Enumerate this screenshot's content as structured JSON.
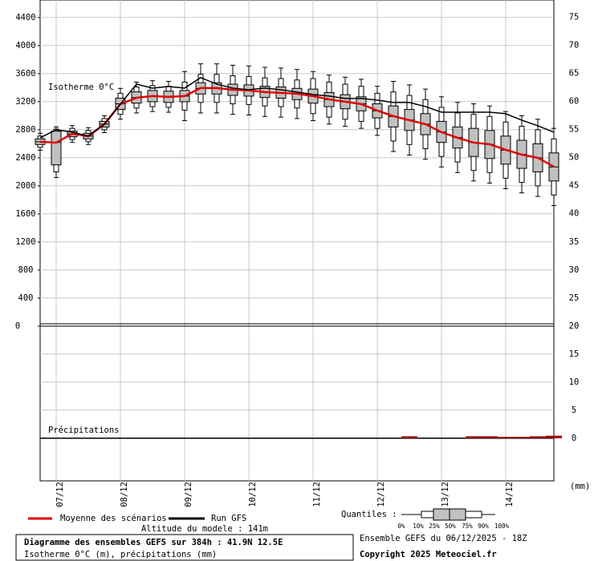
{
  "chart_data": {
    "type": "boxplot",
    "title": "Diagramme des ensembles GEFS sur 384h : 41.9N 12.5E",
    "subtitle": "Isotherme 0°C (m), précipitations (mm)",
    "annotations": [
      "Isotherme 0°C",
      "Précipitations"
    ],
    "y2_unit": "(mm)",
    "altitude": "Altitude du modele : 141m",
    "run": "Ensemble GEFS du 06/12/2025 - 18Z",
    "copyright": "Copyright 2025 Meteociel.fr",
    "quantiles_title": "Quantiles :",
    "quantile_labels": [
      "0%",
      "10%",
      "25%",
      "50%",
      "75%",
      "90%",
      "100%"
    ],
    "xlim": [
      0,
      192
    ],
    "xticks": [
      {
        "value": 6,
        "label": "07/12"
      },
      {
        "value": 30,
        "label": "08/12"
      },
      {
        "value": 54,
        "label": "09/12"
      },
      {
        "value": 78,
        "label": "10/12"
      },
      {
        "value": 102,
        "label": "11/12"
      },
      {
        "value": 126,
        "label": "12/12"
      },
      {
        "value": 150,
        "label": "13/12"
      },
      {
        "value": 174,
        "label": "14/12"
      }
    ],
    "ylim": [
      0,
      4650
    ],
    "yticks": [
      0,
      400,
      800,
      1200,
      1600,
      2000,
      2400,
      2800,
      3200,
      3600,
      4000,
      4400
    ],
    "y2lim": [
      -7.6,
      78.1
    ],
    "y2ticks": [
      0,
      5,
      10,
      15,
      20,
      25,
      30,
      35,
      40,
      45,
      50,
      55,
      60,
      65,
      70,
      75
    ],
    "grid": true,
    "x": [
      0,
      6,
      12,
      18,
      24,
      30,
      36,
      42,
      48,
      54,
      60,
      66,
      72,
      78,
      84,
      90,
      96,
      102,
      108,
      114,
      120,
      126,
      132,
      138,
      144,
      150,
      156,
      162,
      168,
      174,
      180,
      186,
      192
    ],
    "boxes": {
      "color": "#c0c0c0",
      "min": [
        2510,
        2120,
        2620,
        2590,
        2760,
        2950,
        3040,
        3060,
        3050,
        2930,
        3040,
        3040,
        3020,
        3010,
        2990,
        2980,
        2960,
        2930,
        2880,
        2850,
        2820,
        2720,
        2490,
        2440,
        2380,
        2270,
        2190,
        2070,
        2040,
        1960,
        1900,
        1850,
        1720
      ],
      "q10": [
        2550,
        2200,
        2660,
        2630,
        2800,
        3020,
        3110,
        3130,
        3120,
        3080,
        3190,
        3190,
        3170,
        3160,
        3140,
        3130,
        3110,
        3030,
        2980,
        2950,
        2920,
        2820,
        2640,
        2590,
        2530,
        2420,
        2340,
        2220,
        2190,
        2110,
        2050,
        2000,
        1870
      ],
      "q25": [
        2590,
        2300,
        2700,
        2670,
        2840,
        3090,
        3180,
        3200,
        3190,
        3200,
        3310,
        3310,
        3290,
        3280,
        3260,
        3250,
        3230,
        3180,
        3130,
        3100,
        3070,
        2970,
        2840,
        2790,
        2730,
        2620,
        2540,
        2420,
        2390,
        2310,
        2250,
        2200,
        2070
      ],
      "q50": [
        2630,
        2620,
        2740,
        2710,
        2880,
        3170,
        3260,
        3280,
        3270,
        3280,
        3390,
        3390,
        3370,
        3360,
        3340,
        3330,
        3310,
        3280,
        3230,
        3200,
        3170,
        3070,
        2990,
        2940,
        2880,
        2770,
        2690,
        2620,
        2590,
        2510,
        2450,
        2400,
        2270
      ],
      "q75": [
        2670,
        2780,
        2780,
        2750,
        2920,
        3250,
        3340,
        3360,
        3350,
        3360,
        3470,
        3470,
        3450,
        3440,
        3420,
        3410,
        3390,
        3380,
        3330,
        3300,
        3270,
        3170,
        3140,
        3090,
        3030,
        2920,
        2840,
        2820,
        2790,
        2710,
        2650,
        2600,
        2470
      ],
      "q90": [
        2710,
        2810,
        2820,
        2790,
        2960,
        3320,
        3410,
        3430,
        3420,
        3480,
        3590,
        3590,
        3570,
        3560,
        3540,
        3530,
        3510,
        3530,
        3480,
        3450,
        3420,
        3320,
        3340,
        3290,
        3230,
        3120,
        3040,
        3020,
        2990,
        2910,
        2850,
        2800,
        2670
      ],
      "max": [
        2750,
        2840,
        2860,
        2830,
        3000,
        3390,
        3480,
        3500,
        3490,
        3630,
        3740,
        3740,
        3720,
        3710,
        3690,
        3680,
        3660,
        3630,
        3580,
        3550,
        3520,
        3420,
        3490,
        3440,
        3380,
        3270,
        3190,
        3170,
        3140,
        3060,
        3000,
        2950,
        2820
      ]
    },
    "series": [
      {
        "name": "Moyenne des scénarios",
        "color": "#e00000",
        "values": [
          2629,
          2617,
          2743,
          2709,
          2880,
          3166,
          3257,
          3280,
          3269,
          3280,
          3394,
          3394,
          3371,
          3360,
          3337,
          3326,
          3314,
          3280,
          3234,
          3200,
          3166,
          3074,
          2994,
          2937,
          2880,
          2766,
          2686,
          2617,
          2594,
          2514,
          2446,
          2400,
          2274
        ]
      },
      {
        "name": "Run GFS",
        "color": "#000000",
        "values": [
          2686,
          2800,
          2766,
          2709,
          2880,
          3166,
          3451,
          3394,
          3417,
          3394,
          3543,
          3451,
          3394,
          3371,
          3394,
          3371,
          3337,
          3303,
          3280,
          3246,
          3246,
          3223,
          3189,
          3189,
          3131,
          3051,
          3051,
          3051,
          3051,
          3029,
          2937,
          2857,
          2766
        ]
      }
    ],
    "precipitation": {
      "color": "#a00000",
      "axis": "y2",
      "values": [
        0,
        0,
        0,
        0,
        0,
        0,
        0,
        0,
        0,
        0,
        0,
        0,
        0,
        0,
        0,
        0,
        0,
        0,
        0,
        0,
        0,
        0,
        0,
        0.2,
        0,
        0,
        0,
        0.2,
        0.2,
        0.1,
        0.1,
        0.2,
        0.3
      ]
    }
  }
}
